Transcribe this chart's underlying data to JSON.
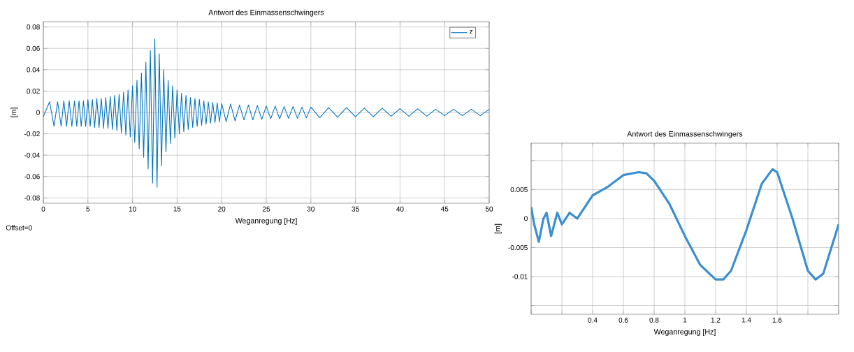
{
  "chart_data": [
    {
      "type": "line",
      "title": "Antwort des Einmassenschwingers",
      "xlabel": "Weganregung [Hz]",
      "ylabel": "[m]",
      "annotations": [
        "Offset=0"
      ],
      "xlim": [
        0,
        50
      ],
      "ylim": [
        -0.085,
        0.085
      ],
      "xticks": [
        0,
        5,
        10,
        15,
        20,
        25,
        30,
        35,
        40,
        45,
        50
      ],
      "yticks": [
        -0.08,
        -0.06,
        -0.04,
        -0.02,
        0,
        0.02,
        0.04,
        0.06,
        0.08
      ],
      "grid": true,
      "legend": "top right",
      "marker": "none",
      "series": [
        {
          "name": "z",
          "color": "#0072bd",
          "x": [
            0,
            0.7,
            1.2,
            1.6,
            2.0,
            2.3,
            2.6,
            2.9,
            3.2,
            3.5,
            3.75,
            4,
            4.25,
            4.5,
            4.75,
            5,
            5.25,
            5.5,
            5.75,
            6,
            6.25,
            6.5,
            6.75,
            7,
            7.25,
            7.5,
            7.75,
            8,
            8.25,
            8.5,
            8.75,
            9,
            9.25,
            9.5,
            9.75,
            10,
            10.25,
            10.5,
            10.75,
            11,
            11.25,
            11.5,
            11.75,
            12,
            12.25,
            12.5,
            12.75,
            13,
            13.25,
            13.5,
            13.75,
            14,
            14.25,
            14.5,
            14.75,
            15,
            15.25,
            15.5,
            15.75,
            16,
            16.25,
            16.5,
            16.75,
            17,
            17.25,
            17.5,
            17.75,
            18,
            18.25,
            18.5,
            18.75,
            19,
            19.25,
            19.5,
            19.75,
            20,
            20.5,
            21,
            21.5,
            22,
            22.5,
            23,
            23.5,
            24,
            24.5,
            25,
            25.5,
            26,
            26.5,
            27,
            27.5,
            28,
            28.5,
            29,
            29.5,
            30,
            31,
            32,
            33,
            34,
            35,
            36,
            37,
            38,
            39,
            40,
            41,
            42,
            43,
            44,
            45,
            46,
            47,
            48,
            49,
            50
          ],
          "values": [
            -0.004,
            0.01,
            -0.013,
            0.01,
            -0.013,
            0.011,
            -0.013,
            0.011,
            -0.013,
            0.011,
            -0.013,
            0.011,
            -0.013,
            0.011,
            -0.013,
            0.012,
            -0.013,
            0.012,
            -0.014,
            0.013,
            -0.014,
            0.013,
            -0.015,
            0.014,
            -0.015,
            0.015,
            -0.016,
            0.016,
            -0.017,
            0.017,
            -0.019,
            0.019,
            -0.021,
            0.021,
            -0.023,
            0.025,
            -0.028,
            0.03,
            -0.034,
            0.037,
            -0.042,
            0.047,
            -0.053,
            0.058,
            -0.066,
            0.069,
            -0.07,
            0.055,
            -0.05,
            0.04,
            -0.037,
            0.03,
            -0.029,
            0.025,
            -0.024,
            0.021,
            -0.02,
            0.018,
            -0.018,
            0.016,
            -0.016,
            0.014,
            -0.014,
            0.013,
            -0.013,
            0.012,
            -0.012,
            0.011,
            -0.011,
            0.01,
            -0.01,
            0.0095,
            -0.0095,
            0.009,
            -0.009,
            0.0085,
            -0.0085,
            0.008,
            -0.008,
            0.007,
            -0.007,
            0.007,
            -0.007,
            0.0065,
            -0.0065,
            0.006,
            -0.006,
            0.006,
            -0.006,
            0.0055,
            -0.0055,
            0.0055,
            -0.0055,
            0.005,
            -0.005,
            0.005,
            -0.005,
            0.0045,
            -0.0045,
            0.0045,
            -0.004,
            0.004,
            -0.004,
            0.004,
            -0.0035,
            0.0035,
            -0.0035,
            0.0035,
            -0.0035,
            0.003,
            -0.003,
            0.003,
            -0.003,
            0.003,
            -0.003,
            0.003
          ]
        }
      ]
    },
    {
      "type": "line",
      "title": "Antwort des Einmassenschwingers",
      "xlabel": "Weganregung [Hz]",
      "ylabel": "[m]",
      "xlim": [
        0,
        2
      ],
      "ylim": [
        -0.0165,
        0.013
      ],
      "xticks": [
        {
          "value": 0,
          "label": null
        },
        {
          "value": 0.2,
          "label": null
        },
        0.4,
        0.6,
        0.8,
        1,
        1.2,
        1.4,
        1.6,
        {
          "value": 1.8,
          "label": null
        },
        {
          "value": 2,
          "label": null
        }
      ],
      "yticks": [
        {
          "value": -0.015,
          "label": null
        },
        -0.01,
        -0.005,
        0,
        0.005,
        {
          "value": 0.01,
          "label": null
        }
      ],
      "grid": true,
      "marker": "none",
      "series": [
        {
          "color": "#3a8fd0",
          "x": [
            0,
            0.02,
            0.05,
            0.08,
            0.1,
            0.13,
            0.17,
            0.2,
            0.25,
            0.3,
            0.35,
            0.4,
            0.5,
            0.6,
            0.7,
            0.75,
            0.8,
            0.9,
            1.0,
            1.1,
            1.2,
            1.25,
            1.3,
            1.4,
            1.5,
            1.57,
            1.6,
            1.7,
            1.8,
            1.85,
            1.9,
            2.0
          ],
          "values": [
            0.002,
            -0.001,
            -0.004,
            0.0,
            0.001,
            -0.003,
            0.001,
            -0.001,
            0.001,
            0.0,
            0.002,
            0.004,
            0.0055,
            0.0075,
            0.008,
            0.0078,
            0.0065,
            0.0025,
            -0.003,
            -0.008,
            -0.0105,
            -0.0105,
            -0.009,
            -0.002,
            0.006,
            0.0085,
            0.008,
            0.0,
            -0.009,
            -0.0105,
            -0.0095,
            -0.001
          ]
        }
      ]
    }
  ]
}
